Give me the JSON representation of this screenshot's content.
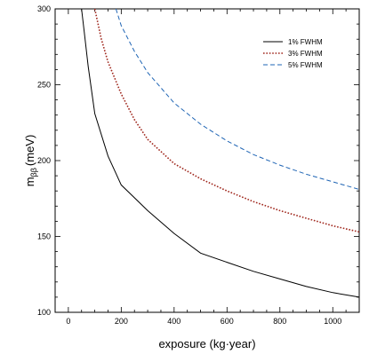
{
  "chart_data": {
    "type": "line",
    "xlabel": "exposure (kg·year)",
    "ylabel_main": "m",
    "ylabel_sub": "ββ",
    "ylabel_unit": "(meV)",
    "xlim": [
      -50,
      1100
    ],
    "ylim": [
      100,
      300
    ],
    "xticks": [
      0,
      200,
      400,
      600,
      800,
      1000
    ],
    "yticks": [
      100,
      150,
      200,
      250,
      300
    ],
    "grid": false,
    "legend_position": "top-right",
    "series": [
      {
        "name": "1% FWHM",
        "style": "solid",
        "color": "#000000",
        "x": [
          50,
          60,
          75,
          100,
          150,
          200,
          300,
          400,
          500,
          600,
          700,
          800,
          900,
          1000,
          1100
        ],
        "y": [
          300,
          285,
          262,
          231,
          203,
          184,
          167,
          152,
          139,
          133,
          127,
          122,
          117,
          113,
          110
        ]
      },
      {
        "name": "3% FWHM",
        "style": "dotted",
        "color": "#a0281e",
        "x": [
          100,
          125,
          150,
          200,
          250,
          300,
          400,
          500,
          600,
          700,
          800,
          900,
          1000,
          1100
        ],
        "y": [
          300,
          280,
          265,
          244,
          227,
          214,
          198,
          188,
          180,
          173,
          167,
          162,
          157,
          153
        ]
      },
      {
        "name": "5% FWHM",
        "style": "dashed",
        "color": "#1e64b4",
        "x": [
          180,
          200,
          250,
          300,
          400,
          500,
          600,
          700,
          800,
          900,
          1000,
          1100
        ],
        "y": [
          300,
          289,
          272,
          258,
          238,
          224,
          213,
          204,
          197,
          191,
          186,
          181
        ]
      }
    ]
  }
}
